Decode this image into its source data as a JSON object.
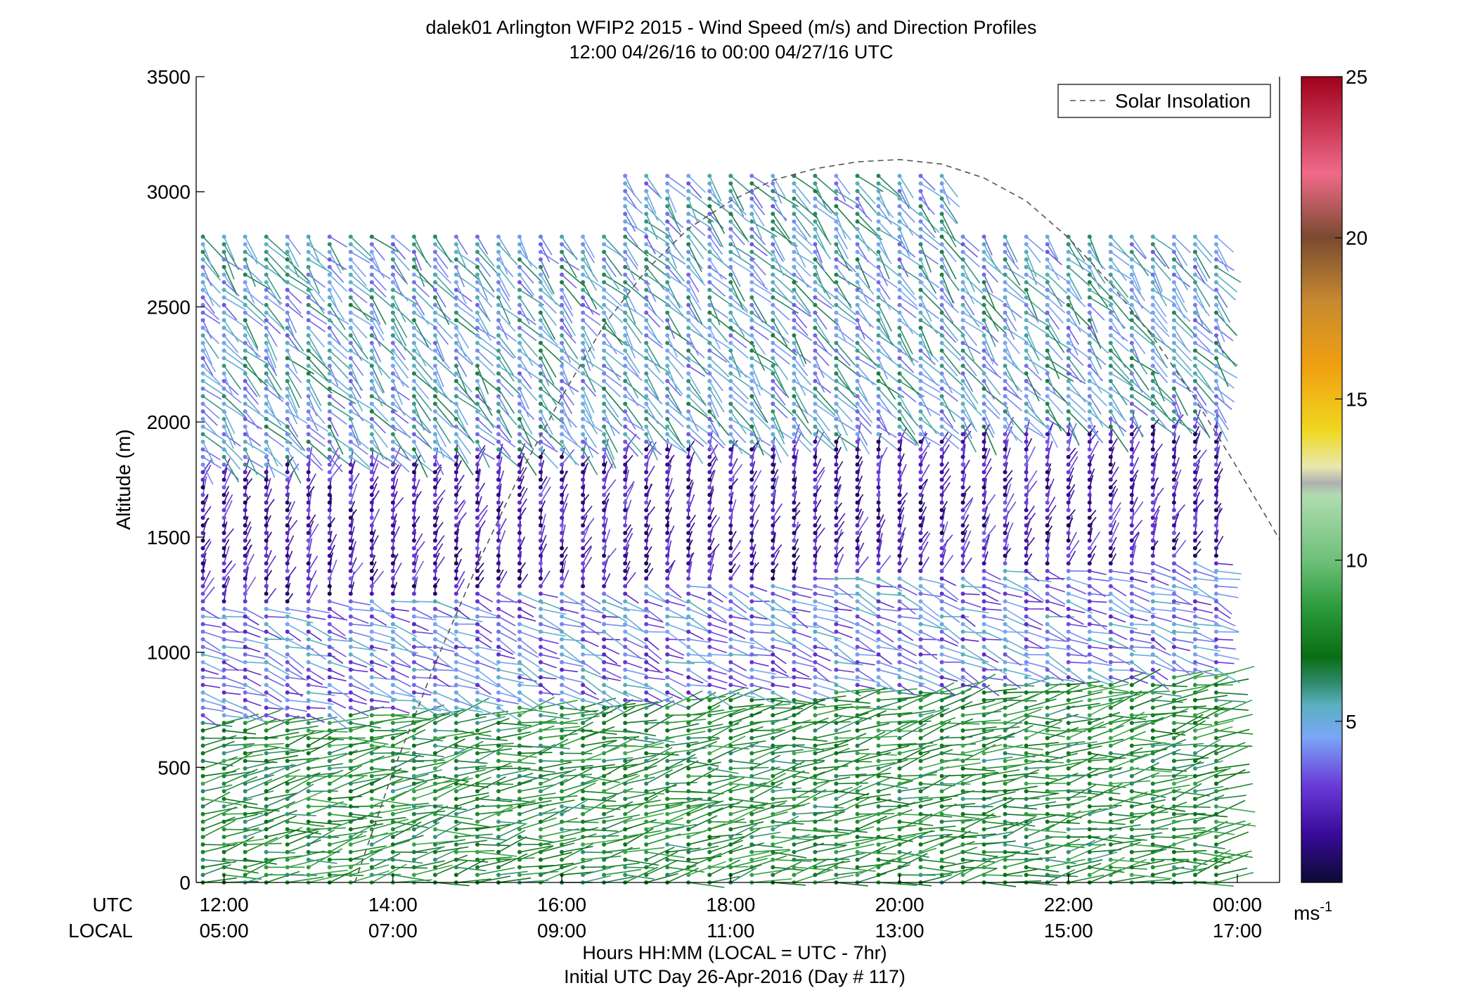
{
  "chart_data": {
    "type": "wind-barb-profile",
    "title": "dalek01 Arlington WFIP2 2015 - Wind Speed (m/s) and Direction Profiles",
    "subtitle": "12:00 04/26/16 to 00:00 04/27/16  UTC",
    "ylabel": "Altitude (m)",
    "xlabel": "Hours HH:MM  (LOCAL = UTC - 7hr)",
    "xlabel2": "Initial UTC Day 26-Apr-2016 (Day # 117)",
    "row_labels": {
      "utc": "UTC",
      "local": "LOCAL"
    },
    "xlim_hours_utc": [
      11.67,
      24.5
    ],
    "ylim": [
      0,
      3500
    ],
    "y_ticks": [
      0,
      500,
      1000,
      1500,
      2000,
      2500,
      3000,
      3500
    ],
    "x_ticks": [
      {
        "hour": 12,
        "utc": "12:00",
        "local": "05:00"
      },
      {
        "hour": 14,
        "utc": "14:00",
        "local": "07:00"
      },
      {
        "hour": 16,
        "utc": "16:00",
        "local": "09:00"
      },
      {
        "hour": 18,
        "utc": "18:00",
        "local": "11:00"
      },
      {
        "hour": 20,
        "utc": "20:00",
        "local": "13:00"
      },
      {
        "hour": 22,
        "utc": "22:00",
        "local": "15:00"
      },
      {
        "hour": 24,
        "utc": "00:00",
        "local": "17:00"
      }
    ],
    "legend": {
      "label": "Solar Insolation",
      "position": "top-right",
      "line_style": "dashed"
    },
    "colorbar": {
      "range": [
        0,
        25
      ],
      "ticks": [
        5,
        10,
        15,
        20,
        25
      ],
      "unit": "ms",
      "unit_superscript": "-1",
      "stops": [
        {
          "v": 0,
          "c": "#0a0a33"
        },
        {
          "v": 1.5,
          "c": "#3a0a9a"
        },
        {
          "v": 3,
          "c": "#6a3ad8"
        },
        {
          "v": 4.5,
          "c": "#7aa6f5"
        },
        {
          "v": 5.5,
          "c": "#5ab0c0"
        },
        {
          "v": 6.2,
          "c": "#2e8a6a"
        },
        {
          "v": 7,
          "c": "#0a6e14"
        },
        {
          "v": 8.5,
          "c": "#2a9a3a"
        },
        {
          "v": 10,
          "c": "#6ec07a"
        },
        {
          "v": 12,
          "c": "#b0dcb0"
        },
        {
          "v": 12.4,
          "c": "#b0b0b0"
        },
        {
          "v": 12.9,
          "c": "#e8e8b0"
        },
        {
          "v": 14,
          "c": "#f0d820"
        },
        {
          "v": 16,
          "c": "#f0a010"
        },
        {
          "v": 18,
          "c": "#c88a30"
        },
        {
          "v": 20,
          "c": "#7a4a30"
        },
        {
          "v": 22,
          "c": "#f06a8a"
        },
        {
          "v": 25,
          "c": "#a0001a"
        }
      ]
    },
    "solar_insolation_curve": {
      "description": "dashed normalized curve, rises from surface near 13:30 UTC, peaks ~20:00 UTC near top of plot",
      "points_hour_altitude": [
        [
          13.55,
          0
        ],
        [
          14,
          480
        ],
        [
          14.5,
          950
        ],
        [
          15,
          1380
        ],
        [
          15.5,
          1770
        ],
        [
          16,
          2110
        ],
        [
          16.5,
          2420
        ],
        [
          17,
          2660
        ],
        [
          17.5,
          2840
        ],
        [
          18,
          2960
        ],
        [
          18.5,
          3050
        ],
        [
          19,
          3100
        ],
        [
          19.5,
          3130
        ],
        [
          20,
          3140
        ],
        [
          20.5,
          3120
        ],
        [
          21,
          3060
        ],
        [
          21.5,
          2960
        ],
        [
          22,
          2800
        ],
        [
          22.5,
          2600
        ],
        [
          23,
          2370
        ],
        [
          23.5,
          2100
        ],
        [
          24,
          1800
        ],
        [
          24.5,
          1490
        ]
      ]
    },
    "profiles": {
      "time_start_hour_utc": 11.75,
      "time_step_hours": 0.25,
      "time_count": 49,
      "altitude_levels_m": {
        "start": 0,
        "step": 33,
        "max": 2830
      },
      "speed_ms_by_layer": [
        {
          "alt_max": 800,
          "speed": 7.5,
          "direction_deg": 260
        },
        {
          "alt_max": 1300,
          "speed": 4.0,
          "direction_deg": 290
        },
        {
          "alt_max": 1900,
          "speed": 2.0,
          "direction_deg": 200
        },
        {
          "alt_max": 2900,
          "speed": 5.0,
          "direction_deg": 320
        }
      ]
    }
  }
}
